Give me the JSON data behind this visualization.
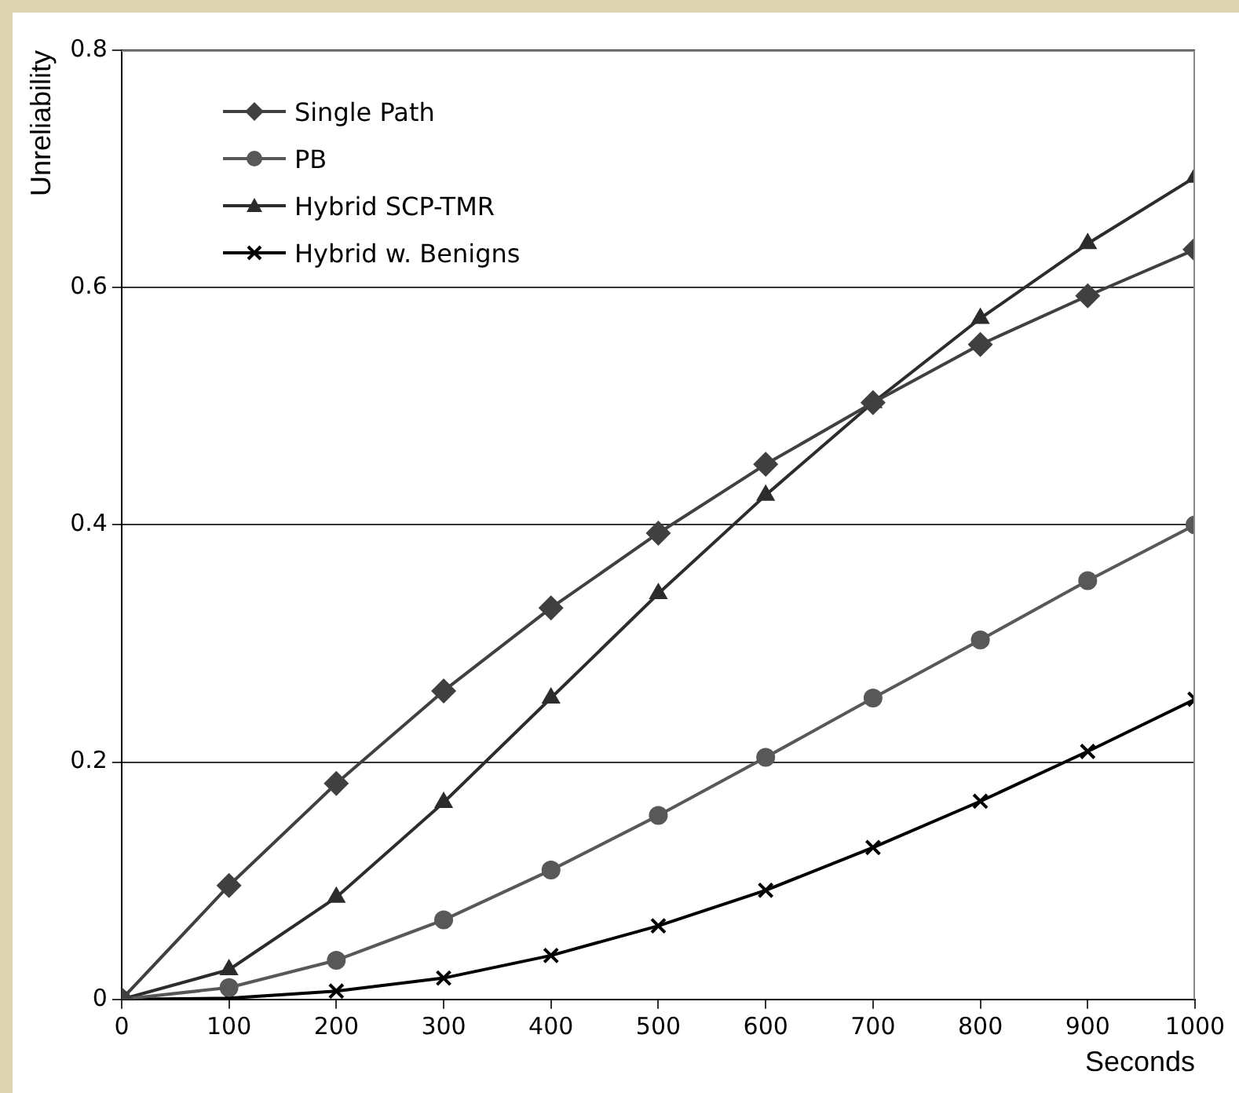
{
  "chart_data": {
    "type": "line",
    "xlabel": "Seconds",
    "ylabel": "Unreliability",
    "x": [
      0,
      100,
      200,
      300,
      400,
      500,
      600,
      700,
      800,
      900,
      1000
    ],
    "xlim": [
      0,
      1000
    ],
    "xticks": [
      0,
      100,
      200,
      300,
      400,
      500,
      600,
      700,
      800,
      900,
      1000
    ],
    "ylim": [
      0,
      0.8
    ],
    "yticks": [
      0,
      0.2,
      0.4,
      0.6,
      0.8
    ],
    "grid": "y",
    "legend": "top left",
    "line_style": "solid",
    "series": [
      {
        "name": "Single Path",
        "color": "#404040",
        "marker": "diamond",
        "values": [
          0,
          0.096,
          0.182,
          0.26,
          0.33,
          0.393,
          0.451,
          0.503,
          0.552,
          0.593,
          0.632
        ]
      },
      {
        "name": "PB",
        "color": "#585858",
        "marker": "circle",
        "values": [
          0,
          0.01,
          0.033,
          0.067,
          0.109,
          0.155,
          0.204,
          0.254,
          0.303,
          0.353,
          0.4
        ]
      },
      {
        "name": "Hybrid SCP-TMR",
        "color": "#2c2c2c",
        "marker": "triangle",
        "values": [
          0,
          0.025,
          0.086,
          0.166,
          0.254,
          0.342,
          0.425,
          0.503,
          0.574,
          0.637,
          0.693
        ]
      },
      {
        "name": "Hybrid w. Benigns",
        "color": "#000000",
        "marker": "cross",
        "values": [
          0,
          0.001,
          0.007,
          0.018,
          0.037,
          0.062,
          0.092,
          0.128,
          0.167,
          0.209,
          0.253
        ]
      }
    ]
  }
}
